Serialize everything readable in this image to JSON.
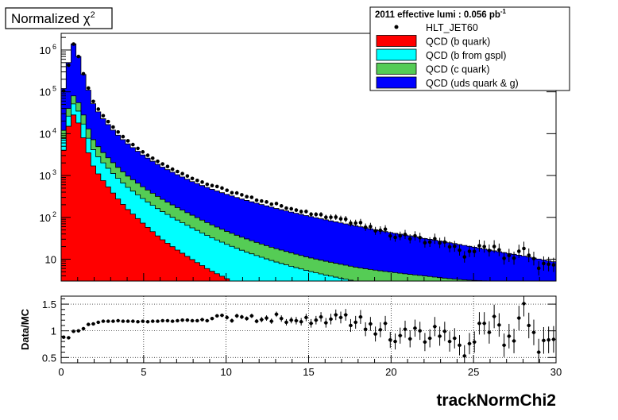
{
  "title_box": {
    "text": "Normalized χ",
    "superscript": "2"
  },
  "legend": {
    "header": "2011 effective lumi : 0.056  pb",
    "header_superscript": "-1",
    "entries": [
      {
        "label": "HLT_JET60",
        "style": "marker",
        "color": "#000000"
      },
      {
        "label": "QCD (b quark)",
        "style": "fill",
        "color": "#ff0000"
      },
      {
        "label": "QCD (b from gspl)",
        "style": "fill",
        "color": "#00ffff"
      },
      {
        "label": "QCD (c quark)",
        "style": "fill",
        "color": "#55cc55"
      },
      {
        "label": "QCD (uds quark & g)",
        "style": "fill",
        "color": "#0000ff"
      }
    ]
  },
  "chart_data": [
    {
      "type": "area",
      "subtype": "stacked-histogram",
      "xlim": [
        0,
        30
      ],
      "ylim": [
        3,
        2500000
      ],
      "ylog": true,
      "yticks": [
        {
          "value": 1000000,
          "mantissa": "10",
          "exp": "6"
        },
        {
          "value": 100000,
          "mantissa": "10",
          "exp": "5"
        },
        {
          "value": 10000,
          "mantissa": "10",
          "exp": "4"
        },
        {
          "value": 1000,
          "mantissa": "10",
          "exp": "3"
        },
        {
          "value": 100,
          "mantissa": "10",
          "exp": "2"
        },
        {
          "value": 10,
          "mantissa": "10",
          "exp": ""
        }
      ],
      "stack_anchors": {
        "x": [
          0.15,
          0.45,
          0.75,
          1.05,
          1.35,
          1.65,
          2.0,
          2.5,
          3,
          3.5,
          4,
          5,
          6,
          7,
          8,
          9,
          10,
          11,
          12,
          13,
          14,
          15,
          16,
          17,
          18,
          19,
          20,
          21,
          22,
          23,
          24,
          25,
          26,
          27,
          28,
          29,
          30
        ],
        "b_quark": [
          4000,
          15000,
          28000,
          18000,
          8000,
          3500,
          1500,
          800,
          450,
          260,
          160,
          70,
          32,
          17,
          9.5,
          5.5,
          3.5,
          2.2,
          1.5,
          1.0,
          0.7,
          0.5,
          0.3,
          0.2,
          0.1,
          0.05,
          0.03,
          0.02,
          0.01,
          0.01,
          0.01,
          0.01,
          0.01,
          0.01,
          0.01,
          0.01,
          0.01
        ],
        "c_quark_top": [
          12000,
          40000,
          80000,
          55000,
          28000,
          13000,
          6500,
          3700,
          2300,
          1500,
          1000,
          520,
          290,
          175,
          110,
          70,
          47,
          33,
          24,
          18,
          14,
          11,
          9,
          7.5,
          6.3,
          5.5,
          4.9,
          4.4,
          4.0,
          3.6,
          3.3,
          3.1,
          3.0,
          3.0,
          3.0,
          3.0,
          3.0
        ],
        "total": [
          120000,
          500000,
          1400000,
          700000,
          260000,
          110000,
          46000,
          24000,
          14000,
          8800,
          5900,
          3000,
          1700,
          1070,
          700,
          490,
          360,
          270,
          210,
          165,
          132,
          107,
          88,
          73,
          61,
          51,
          43,
          37,
          31.5,
          27,
          23,
          19.5,
          16.5,
          14,
          12,
          10,
          8.5
        ]
      }
    },
    {
      "type": "scatter",
      "name": "HLT_JET60",
      "xlim": [
        0,
        30
      ],
      "ylim": [
        0.4,
        1.65
      ],
      "xlabel": "trackNormChi2",
      "ylabel": "Data/MC",
      "xticks": [
        0,
        5,
        10,
        15,
        20,
        25,
        30
      ],
      "yticks": [
        0.5,
        1,
        1.5
      ],
      "grid": true,
      "x": [
        0.15,
        0.45,
        0.75,
        1.05,
        1.35,
        1.65,
        1.95,
        2.25,
        2.55,
        2.85,
        3.15,
        3.45,
        3.75,
        4.05,
        4.35,
        4.65,
        4.95,
        5.25,
        5.55,
        5.85,
        6.15,
        6.45,
        6.75,
        7.05,
        7.35,
        7.65,
        7.95,
        8.25,
        8.55,
        8.85,
        9.15,
        9.45,
        9.75,
        10.05,
        10.35,
        10.65,
        10.95,
        11.25,
        11.55,
        11.85,
        12.15,
        12.45,
        12.75,
        13.05,
        13.35,
        13.65,
        13.95,
        14.25,
        14.55,
        14.85,
        15.15,
        15.45,
        15.75,
        16.05,
        16.35,
        16.65,
        16.95,
        17.25,
        17.55,
        17.85,
        18.15,
        18.45,
        18.75,
        19.05,
        19.35,
        19.65,
        19.95,
        20.25,
        20.55,
        20.85,
        21.15,
        21.45,
        21.75,
        22.05,
        22.35,
        22.65,
        22.95,
        23.25,
        23.55,
        23.85,
        24.15,
        24.45,
        24.75,
        25.05,
        25.35,
        25.65,
        25.95,
        26.25,
        26.55,
        26.85,
        27.15,
        27.45,
        27.75,
        28.05,
        28.35,
        28.65,
        28.95,
        29.25,
        29.55,
        29.85
      ],
      "y": [
        0.88,
        0.87,
        0.99,
        1.0,
        1.04,
        1.12,
        1.13,
        1.16,
        1.18,
        1.18,
        1.18,
        1.19,
        1.18,
        1.18,
        1.18,
        1.17,
        1.18,
        1.17,
        1.18,
        1.18,
        1.19,
        1.19,
        1.18,
        1.19,
        1.2,
        1.2,
        1.19,
        1.19,
        1.21,
        1.19,
        1.23,
        1.28,
        1.29,
        1.25,
        1.19,
        1.28,
        1.26,
        1.23,
        1.28,
        1.18,
        1.21,
        1.24,
        1.18,
        1.31,
        1.23,
        1.16,
        1.2,
        1.19,
        1.17,
        1.25,
        1.14,
        1.2,
        1.26,
        1.15,
        1.22,
        1.3,
        1.25,
        1.3,
        1.1,
        1.16,
        1.26,
        1.03,
        1.13,
        0.94,
        1.02,
        1.14,
        0.83,
        0.8,
        0.91,
        1.03,
        0.85,
        1.05,
        1.0,
        0.79,
        0.86,
        1.08,
        0.9,
        0.99,
        0.8,
        0.86,
        0.73,
        0.53,
        0.76,
        0.79,
        1.14,
        1.14,
        0.97,
        1.27,
        1.11,
        0.73,
        0.9,
        0.81,
        1.24,
        1.51,
        1.1,
        0.97,
        0.6,
        0.82,
        0.83,
        0.84
      ],
      "yerr": [
        0.02,
        0.02,
        0.02,
        0.02,
        0.02,
        0.02,
        0.02,
        0.02,
        0.02,
        0.02,
        0.02,
        0.02,
        0.02,
        0.02,
        0.02,
        0.02,
        0.02,
        0.02,
        0.02,
        0.02,
        0.02,
        0.02,
        0.02,
        0.03,
        0.03,
        0.03,
        0.03,
        0.03,
        0.03,
        0.03,
        0.03,
        0.03,
        0.03,
        0.04,
        0.04,
        0.04,
        0.04,
        0.04,
        0.04,
        0.04,
        0.05,
        0.05,
        0.05,
        0.05,
        0.06,
        0.06,
        0.06,
        0.07,
        0.07,
        0.07,
        0.08,
        0.08,
        0.09,
        0.09,
        0.1,
        0.1,
        0.11,
        0.11,
        0.12,
        0.12,
        0.13,
        0.13,
        0.13,
        0.14,
        0.14,
        0.14,
        0.15,
        0.15,
        0.15,
        0.16,
        0.16,
        0.16,
        0.17,
        0.17,
        0.17,
        0.18,
        0.18,
        0.18,
        0.19,
        0.19,
        0.19,
        0.2,
        0.2,
        0.2,
        0.21,
        0.21,
        0.21,
        0.22,
        0.22,
        0.22,
        0.23,
        0.23,
        0.23,
        0.24,
        0.24,
        0.24,
        0.25,
        0.25,
        0.25,
        0.25
      ]
    }
  ]
}
